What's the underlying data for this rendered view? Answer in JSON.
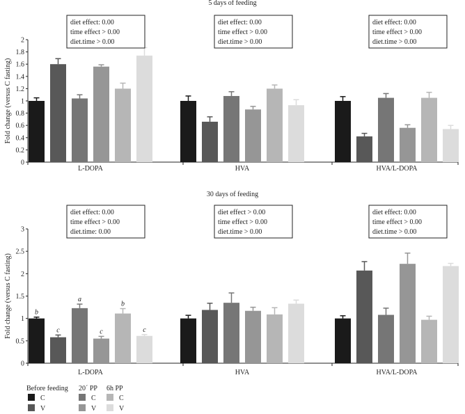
{
  "chart_data": [
    {
      "type": "bar",
      "title": "5 days of feeding",
      "ylabel": "Fold change (versus C fasting)",
      "ylim": [
        0,
        2
      ],
      "yticks": [
        "0",
        "0.2",
        "0.4",
        "0.6",
        "0.8",
        "1",
        "1.2",
        "1.4",
        "1.6",
        "1.8",
        "2"
      ],
      "categories": [
        "L-DOPA",
        "HVA",
        "HVA/L-DOPA"
      ],
      "series": [
        {
          "name": "Before feeding C",
          "color": "#1a1a1a",
          "values": [
            1.0,
            1.0,
            1.0
          ],
          "errors": [
            0.05,
            0.08,
            0.07
          ]
        },
        {
          "name": "Before feeding V",
          "color": "#585858",
          "values": [
            1.6,
            0.66,
            0.42
          ],
          "errors": [
            0.09,
            0.08,
            0.05
          ]
        },
        {
          "name": "20' PP C",
          "color": "#767676",
          "values": [
            1.04,
            1.08,
            1.05
          ],
          "errors": [
            0.06,
            0.07,
            0.07
          ]
        },
        {
          "name": "20' PP V",
          "color": "#969696",
          "values": [
            1.56,
            0.86,
            0.56
          ],
          "errors": [
            0.03,
            0.05,
            0.05
          ]
        },
        {
          "name": "6h PP C",
          "color": "#b6b6b6",
          "values": [
            1.2,
            1.2,
            1.05
          ],
          "errors": [
            0.09,
            0.06,
            0.09
          ]
        },
        {
          "name": "6h PP V",
          "color": "#dcdcdc",
          "values": [
            1.74,
            0.93,
            0.54
          ],
          "errors": [
            0.13,
            0.09,
            0.06
          ]
        }
      ],
      "annotations": [
        {
          "category": "L-DOPA",
          "lines": [
            "diet effect: 0.00",
            "time effect > 0.00",
            "diet.time > 0.00"
          ]
        },
        {
          "category": "HVA",
          "lines": [
            "diet effect: 0.00",
            "time effect > 0.00",
            "diet.time > 0.00"
          ]
        },
        {
          "category": "HVA/L-DOPA",
          "lines": [
            "diet effect: 0.00",
            "time effect > 0.00",
            "diet.time > 0.00"
          ]
        }
      ],
      "bar_labels": []
    },
    {
      "type": "bar",
      "title": "30 days of feeding",
      "ylabel": "Fold change (versus C fasting)",
      "ylim": [
        0,
        3
      ],
      "yticks": [
        "0",
        "0.5",
        "1",
        "1.5",
        "2",
        "2.5",
        "3"
      ],
      "categories": [
        "L-DOPA",
        "HVA",
        "HVA/L-DOPA"
      ],
      "series": [
        {
          "name": "Before feeding C",
          "color": "#1a1a1a",
          "values": [
            1.0,
            1.0,
            1.0
          ],
          "errors": [
            0.03,
            0.07,
            0.06
          ]
        },
        {
          "name": "Before feeding V",
          "color": "#585858",
          "values": [
            0.58,
            1.19,
            2.07
          ],
          "errors": [
            0.05,
            0.15,
            0.2
          ]
        },
        {
          "name": "20' PP C",
          "color": "#767676",
          "values": [
            1.23,
            1.35,
            1.08
          ],
          "errors": [
            0.09,
            0.22,
            0.15
          ]
        },
        {
          "name": "20' PP V",
          "color": "#969696",
          "values": [
            0.55,
            1.17,
            2.22
          ],
          "errors": [
            0.05,
            0.08,
            0.24
          ]
        },
        {
          "name": "6h PP C",
          "color": "#b6b6b6",
          "values": [
            1.11,
            1.09,
            0.97
          ],
          "errors": [
            0.11,
            0.15,
            0.08
          ]
        },
        {
          "name": "6h PP V",
          "color": "#dcdcdc",
          "values": [
            0.61,
            1.33,
            2.17
          ],
          "errors": [
            0.03,
            0.08,
            0.06
          ]
        }
      ],
      "annotations": [
        {
          "category": "L-DOPA",
          "lines": [
            "diet effect: 0.00",
            "time effect > 0.00",
            "diet.time: 0.00"
          ]
        },
        {
          "category": "HVA",
          "lines": [
            "diet effect > 0.00",
            "time effect > 0.00",
            "diet.time > 0.00"
          ]
        },
        {
          "category": "HVA/L-DOPA",
          "lines": [
            "diet effect: 0.00",
            "time effect > 0.00",
            "diet.time > 0.00"
          ]
        }
      ],
      "bar_labels": [
        {
          "category": 0,
          "series": 0,
          "text": "b"
        },
        {
          "category": 0,
          "series": 1,
          "text": "c"
        },
        {
          "category": 0,
          "series": 2,
          "text": "a"
        },
        {
          "category": 0,
          "series": 3,
          "text": "c"
        },
        {
          "category": 0,
          "series": 4,
          "text": "b"
        },
        {
          "category": 0,
          "series": 5,
          "text": "c"
        }
      ]
    }
  ],
  "legend": {
    "group_labels": [
      "Before feeding",
      "20´ PP",
      "6h PP"
    ],
    "row_labels": [
      "C",
      "V"
    ],
    "colors": [
      [
        "#1a1a1a",
        "#585858"
      ],
      [
        "#767676",
        "#969696"
      ],
      [
        "#b6b6b6",
        "#dcdcdc"
      ]
    ]
  }
}
